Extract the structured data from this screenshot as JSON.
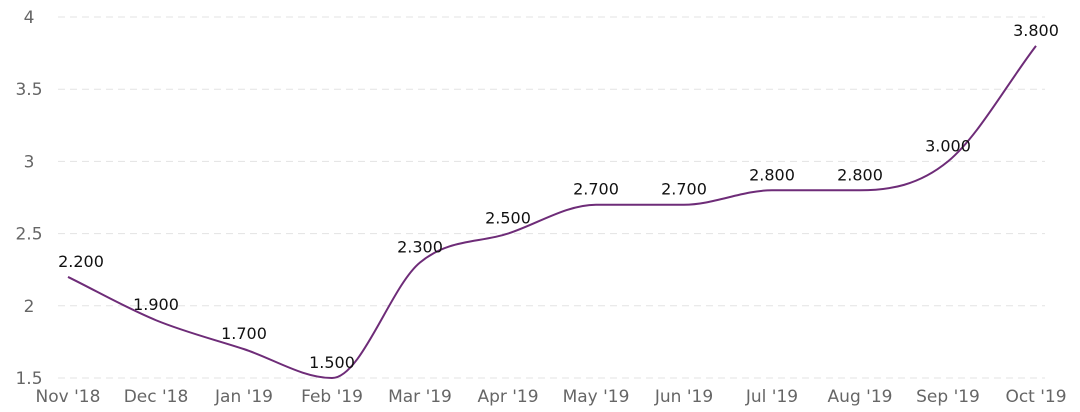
{
  "chart_data": {
    "type": "line",
    "title": "",
    "xlabel": "",
    "ylabel": "",
    "categories": [
      "Nov '18",
      "Dec '18",
      "Jan '19",
      "Feb '19",
      "Mar '19",
      "Apr '19",
      "May '19",
      "Jun '19",
      "Jul '19",
      "Aug '19",
      "Sep '19",
      "Oct '19"
    ],
    "series": [
      {
        "values": [
          2.2,
          1.9,
          1.7,
          1.5,
          2.3,
          2.5,
          2.7,
          2.7,
          2.8,
          2.8,
          3.0,
          3.8
        ],
        "data_labels": [
          "2.200",
          "1.900",
          "1.700",
          "1.500",
          "2.300",
          "2.500",
          "2.700",
          "2.700",
          "2.800",
          "2.800",
          "3.000",
          "3.800"
        ],
        "color": "#6e2c78"
      }
    ],
    "ylim": [
      1.5,
      4
    ],
    "y_ticks": [
      1.5,
      2,
      2.5,
      3,
      3.5,
      4
    ],
    "y_tick_labels": [
      "1.5",
      "2",
      "2.5",
      "3",
      "3.5",
      "4"
    ],
    "grid": true,
    "grid_style": "dashed",
    "legend": "none",
    "line_style": "smooth"
  }
}
